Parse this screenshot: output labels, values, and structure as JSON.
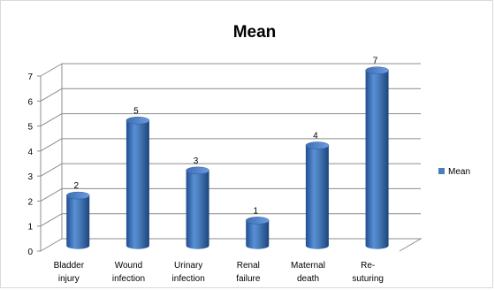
{
  "chart_data": {
    "type": "bar",
    "title": "Mean",
    "categories": [
      [
        "Bladder",
        "injury"
      ],
      [
        "Wound",
        "infection"
      ],
      [
        "Urinary",
        "infection"
      ],
      [
        "Renal",
        "failure"
      ],
      [
        "Maternal",
        "death"
      ],
      [
        "Re-",
        "suturing"
      ]
    ],
    "series": [
      {
        "name": "Mean",
        "values": [
          2,
          5,
          3,
          1,
          4,
          7
        ],
        "color": "#4a7ebb"
      }
    ],
    "data_labels": [
      "2",
      "5",
      "3",
      "1",
      "4",
      "7"
    ],
    "y_ticks": [
      "0",
      "1",
      "2",
      "3",
      "4",
      "5",
      "6",
      "7"
    ],
    "ylim": [
      0,
      7
    ],
    "grid": true,
    "style": "3d-cylinder",
    "legend": {
      "position": "right",
      "label": "Mean"
    }
  }
}
